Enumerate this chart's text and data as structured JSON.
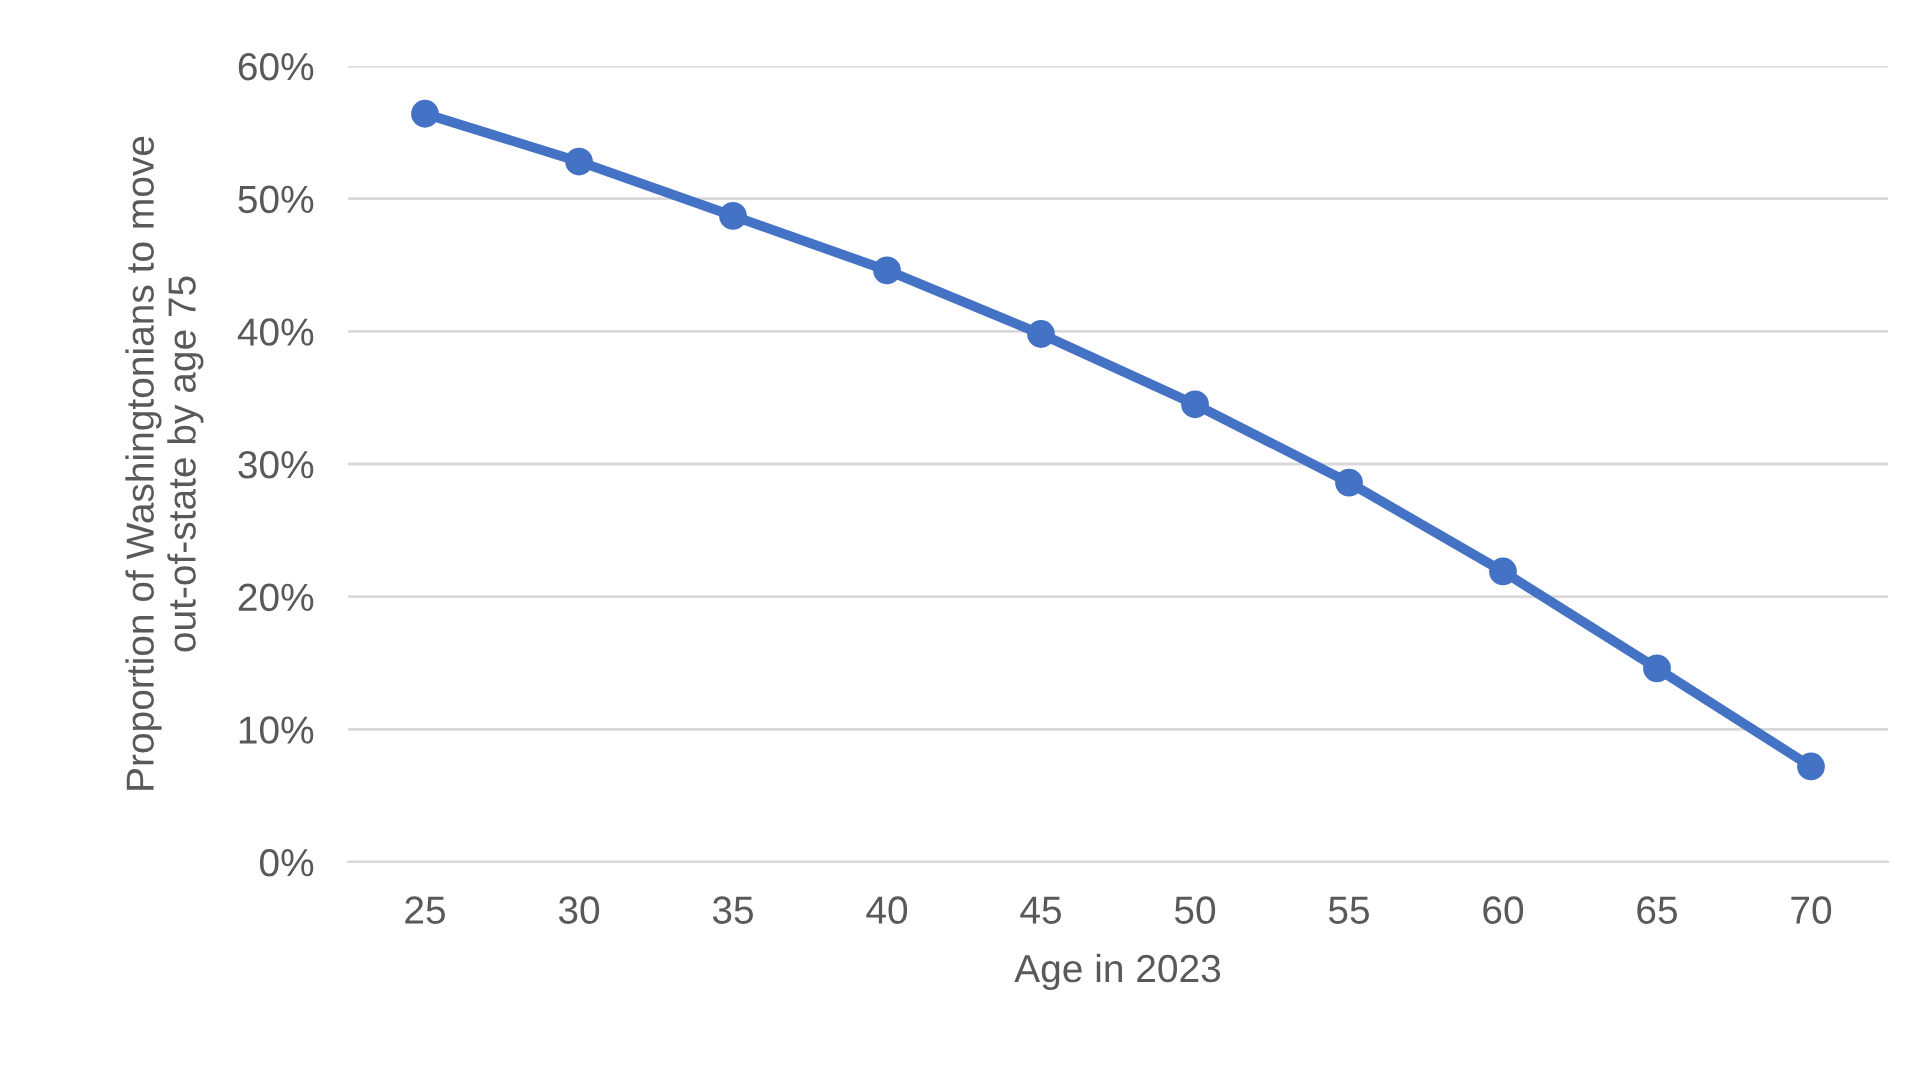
{
  "chart_data": {
    "type": "line",
    "xlabel": "Age in 2023",
    "ylabel": "Proportion of Washingtonians to move\nout-of-state by age 75",
    "categories": [
      "25",
      "30",
      "35",
      "40",
      "45",
      "50",
      "55",
      "60",
      "65",
      "70"
    ],
    "series": [
      {
        "color": "#4472c4",
        "values": [
          56.4,
          52.8,
          48.7,
          44.6,
          39.8,
          34.5,
          28.6,
          21.9,
          14.6,
          7.2
        ]
      }
    ],
    "ylim": [
      0,
      60
    ],
    "yticks": [
      {
        "value": 0,
        "label": "0%"
      },
      {
        "value": 10,
        "label": "10%"
      },
      {
        "value": 20,
        "label": "20%"
      },
      {
        "value": 30,
        "label": "30%"
      },
      {
        "value": 40,
        "label": "40%"
      },
      {
        "value": 50,
        "label": "50%"
      },
      {
        "value": 60,
        "label": "60%"
      }
    ],
    "grid": "y",
    "marker": "circle",
    "line_style": "solid"
  }
}
